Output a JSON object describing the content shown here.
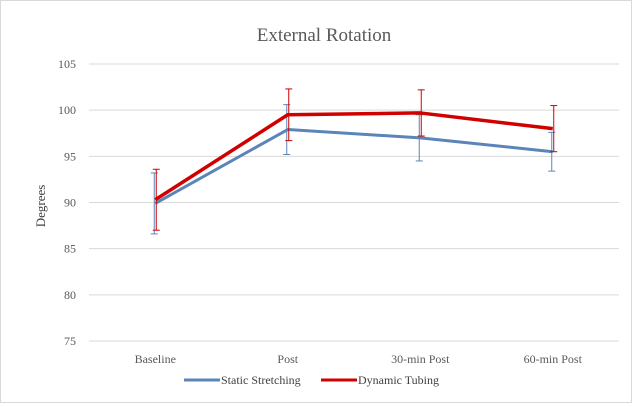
{
  "chart_data": {
    "type": "line",
    "title": "External Rotation",
    "ylabel": "Degrees",
    "xlabel": "",
    "categories": [
      "Baseline",
      "Post",
      "30-min Post",
      "60-min Post"
    ],
    "ylim": [
      75,
      105
    ],
    "yticks": [
      75,
      80,
      85,
      90,
      95,
      100,
      105
    ],
    "grid": true,
    "legend_position": "bottom",
    "series": [
      {
        "name": "Static Stretching",
        "color": "#5b84b8",
        "values": [
          89.9,
          97.9,
          97.0,
          95.5
        ],
        "error": [
          3.3,
          2.7,
          2.5,
          2.1
        ]
      },
      {
        "name": "Dynamic Tubing",
        "color": "#d00000",
        "values": [
          90.3,
          99.5,
          99.7,
          98.0
        ],
        "error": [
          3.3,
          2.8,
          2.5,
          2.5
        ]
      }
    ]
  }
}
